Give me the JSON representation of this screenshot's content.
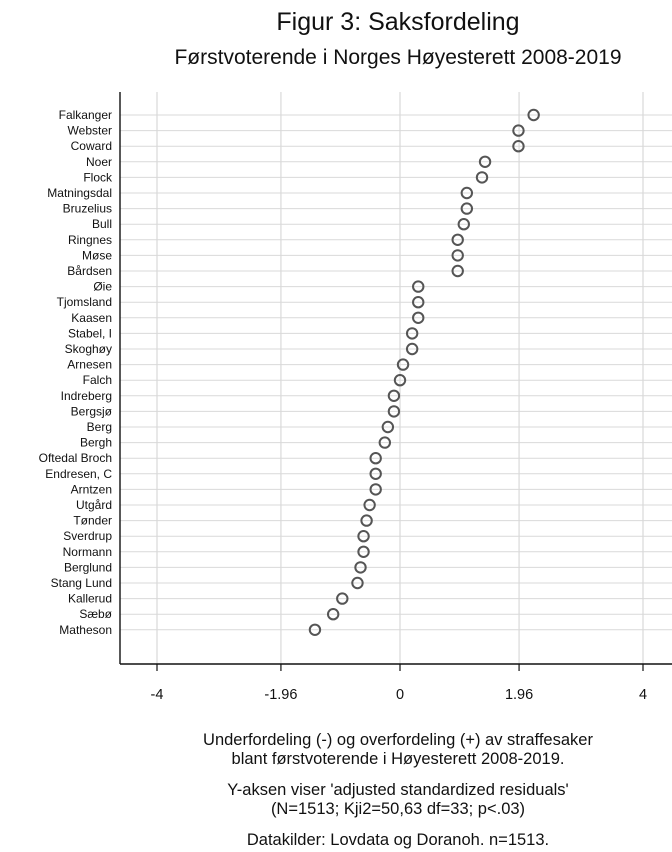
{
  "chart_data": {
    "type": "scatter",
    "title": "Figur 3: Saksfordeling",
    "subtitle": "Førstvoterende i Norges Høyesterett 2008-2019",
    "xlabel": "",
    "ylabel": "",
    "xlim": [
      -4.5,
      4.3
    ],
    "x_ticks": [
      -4,
      -1.96,
      0,
      1.96,
      4
    ],
    "x_tick_labels": [
      "-4",
      "-1.96",
      "0",
      "1.96",
      "4"
    ],
    "grid": true,
    "categories": [
      "Falkanger",
      "Webster",
      "Coward",
      "Noer",
      "Flock",
      "Matningsdal",
      "Bruzelius",
      "Bull",
      "Ringnes",
      "Møse",
      "Bårdsen",
      "Øie",
      "Tjomsland",
      "Kaasen",
      "Stabel, I",
      "Skoghøy",
      "Arnesen",
      "Falch",
      "Indreberg",
      "Bergsjø",
      "Berg",
      "Bergh",
      "Oftedal Broch",
      "Endresen, C",
      "Arntzen",
      "Utgård",
      "Tønder",
      "Sverdrup",
      "Normann",
      "Berglund",
      "Stang Lund",
      "Kallerud",
      "Sæbø",
      "Matheson"
    ],
    "values": [
      2.2,
      1.95,
      1.95,
      1.4,
      1.35,
      1.1,
      1.1,
      1.05,
      0.95,
      0.95,
      0.95,
      0.3,
      0.3,
      0.3,
      0.2,
      0.2,
      0.05,
      0.0,
      -0.1,
      -0.1,
      -0.2,
      -0.25,
      -0.4,
      -0.4,
      -0.4,
      -0.5,
      -0.55,
      -0.6,
      -0.6,
      -0.65,
      -0.7,
      -0.95,
      -1.1,
      -1.4
    ],
    "notes": [
      "Underfordeling (-) og overfordeling (+) av straffesaker",
      "blant førstvoterende i Høyesterett 2008-2019.",
      "Y-aksen viser 'adjusted standardized residuals'",
      "(N=1513; Kji2=50,63 df=33; p<.03)",
      "Datakilder: Lovdata og Doranoh. n=1513."
    ],
    "colors": {
      "marker_stroke": "#555555",
      "grid": "#d9d9d9",
      "axis": "#111111"
    }
  }
}
